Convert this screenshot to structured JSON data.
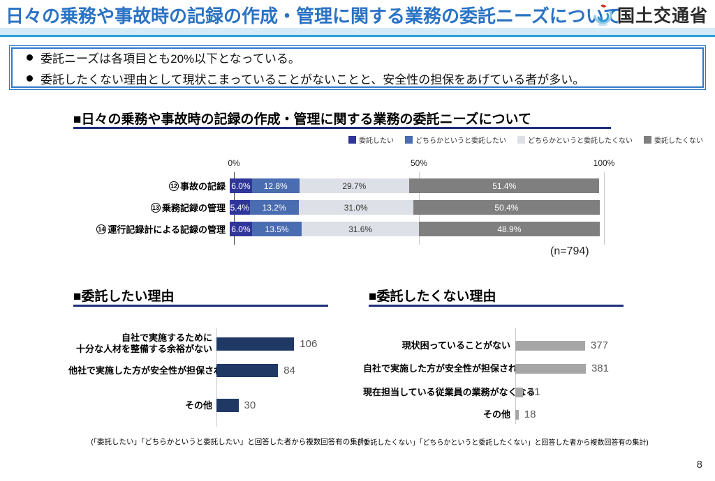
{
  "header": {
    "title": "日々の乗務や事故時の記録の作成・管理に関する業務の委託ニーズについて",
    "agency": "国土交通省"
  },
  "summary": {
    "bullets": [
      "委託ニーズは各項目とも20%以下となっている。",
      "委託したくない理由として現状こまっていることがないことと、安全性の担保をあげている者が多い。"
    ]
  },
  "colors": {
    "title_blue": "#2a72c4",
    "band_blue": "#d5ecf8",
    "band_line": "#2da0d4",
    "box_border": "#2e79cc",
    "underline_navy": "#1f2d7c"
  },
  "chart_data": [
    {
      "type": "bar",
      "stacked": true,
      "orientation": "horizontal",
      "title": "■日々の乗務や事故時の記録の作成・管理に関する業務の委託ニーズについて",
      "sample_note": "(n=794)",
      "x_ticks": [
        "0%",
        "50%",
        "100%"
      ],
      "xlim": [
        0,
        100
      ],
      "legend_position": "top-right",
      "categories": [
        {
          "num": "12",
          "label": "事故の記録"
        },
        {
          "num": "13",
          "label": "乗務記録の管理"
        },
        {
          "num": "14",
          "label": "運行記録計による記録の管理"
        }
      ],
      "series": [
        {
          "name": "委託したい",
          "color": "#2f3699",
          "text_color": "#ffffff",
          "values": [
            6.0,
            5.4,
            6.0
          ]
        },
        {
          "name": "どちらかというと委託したい",
          "color": "#4a6cb0",
          "text_color": "#ffffff",
          "values": [
            12.8,
            13.2,
            13.5
          ]
        },
        {
          "name": "どちらかというと委託したくない",
          "color": "#dde1e7",
          "text_color": "#333333",
          "values": [
            29.7,
            31.0,
            31.6
          ]
        },
        {
          "name": "委託したくない",
          "color": "#7f7f7f",
          "text_color": "#ffffff",
          "values": [
            51.4,
            50.4,
            48.9
          ]
        }
      ],
      "value_suffix": "%"
    },
    {
      "type": "bar",
      "orientation": "horizontal",
      "title": "■委託したい理由",
      "bar_color": "#1f3864",
      "categories": [
        [
          "自社で実施するために",
          "十分な人材を整備する余裕がない"
        ],
        [
          "他社で実施した方が安全性が担保される"
        ],
        [
          "その他"
        ]
      ],
      "values": [
        106,
        84,
        30
      ],
      "footnote": "(「委託したい」「どちらかというと委託したい」と回答した者から複数回答有の集計)"
    },
    {
      "type": "bar",
      "orientation": "horizontal",
      "title": "■委託したくない理由",
      "bar_color": "#a6a6a6",
      "categories": [
        [
          "現状困っていることがない"
        ],
        [
          "自社で実施した方が安全性が担保される"
        ],
        [
          "現在担当している従業員の業務がなくなる"
        ],
        [
          "その他"
        ]
      ],
      "values": [
        377,
        381,
        41,
        18
      ],
      "footnote": "(「委託したくない」「どちらかというと委託したくない」と回答した者から複数回答有の集計)"
    }
  ],
  "page_number": "8"
}
